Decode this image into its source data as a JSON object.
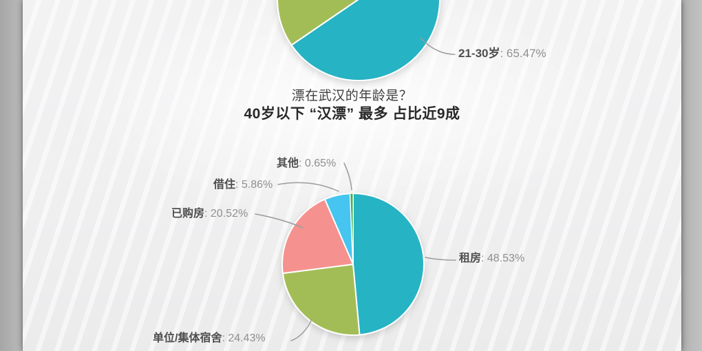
{
  "heading": {
    "question": "漂在武汉的年龄是？",
    "statement": "40岁以下 “汉漂” 最多 占比近9成"
  },
  "chart_data": [
    {
      "type": "pie",
      "id": "age-pie",
      "note": "top pie, cropped at top edge; only lower half visible",
      "unit": "%",
      "slices": [
        {
          "label": "21-30岁",
          "value": 65.47,
          "color": "#26b3c4",
          "label_visible": true
        },
        {
          "label": "",
          "value": 34.53,
          "color": "#a3bd56",
          "label_visible": false
        }
      ],
      "title": "漂在武汉的年龄是？",
      "subtitle": "40岁以下 “汉漂” 最多 占比近9成"
    },
    {
      "type": "pie",
      "id": "housing-pie",
      "unit": "%",
      "slices": [
        {
          "label": "租房",
          "value": 48.53,
          "color": "#26b3c4",
          "label_visible": true
        },
        {
          "label": "单位/集体宿舍",
          "value": 24.43,
          "color": "#a3bd56",
          "label_visible": true
        },
        {
          "label": "已购房",
          "value": 20.52,
          "color": "#f5918e",
          "label_visible": true
        },
        {
          "label": "借住",
          "value": 5.86,
          "color": "#45c5ef",
          "label_visible": true
        },
        {
          "label": "其他",
          "value": 0.65,
          "color": "#3cb54b",
          "label_visible": true
        }
      ]
    }
  ],
  "callouts": {
    "age2130": {
      "name": "21-30岁",
      "value": ": 65.47%"
    },
    "qita": {
      "name": "其他",
      "value": ": 0.65%"
    },
    "jiezhu": {
      "name": "借住",
      "value": ": 5.86%"
    },
    "yigoufang": {
      "name": "已购房",
      "value": ": 20.52%"
    },
    "zufang": {
      "name": "租房",
      "value": ": 48.53%"
    },
    "danwei": {
      "name": "单位/集体宿舍",
      "value": ": 24.43%"
    }
  },
  "style_colors": {
    "leader_line": "#9b9b9b",
    "label_name": "#4e4e4e",
    "label_value": "#8f8f8f",
    "panel_bg": "#f0f0f1"
  }
}
